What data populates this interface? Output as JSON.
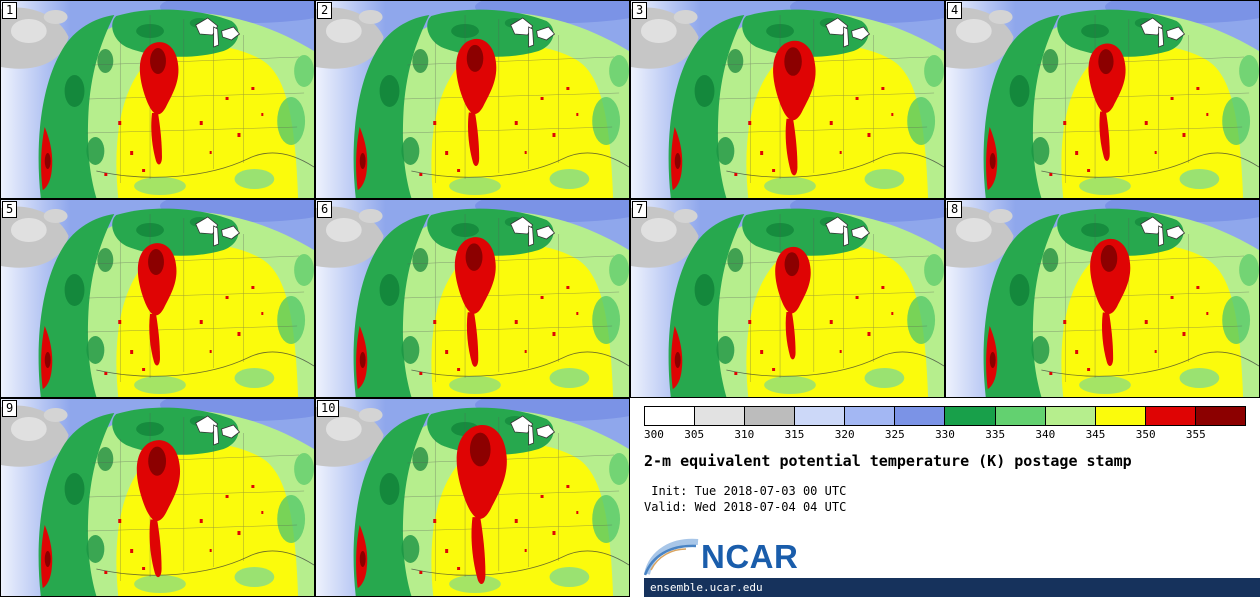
{
  "panels": [
    {
      "label": "1"
    },
    {
      "label": "2"
    },
    {
      "label": "3"
    },
    {
      "label": "4"
    },
    {
      "label": "5"
    },
    {
      "label": "6"
    },
    {
      "label": "7"
    },
    {
      "label": "8"
    },
    {
      "label": "9"
    },
    {
      "label": "10"
    }
  ],
  "colorbar": {
    "units": "K",
    "ticks": [
      "300",
      "305",
      "310",
      "315",
      "320",
      "325",
      "330",
      "335",
      "340",
      "345",
      "350",
      "355"
    ],
    "segment_colors": [
      "#ffffff",
      "#e2e2e2",
      "#bcbcbc",
      "#ccd8f8",
      "#a3b7f3",
      "#7b93e6",
      "#18a04a",
      "#63d170",
      "#b6ee8d",
      "#fbfb0c",
      "#df0404",
      "#8c0000"
    ]
  },
  "product": {
    "title": "2-m equivalent potential temperature (K) postage stamp",
    "init_line": " Init: Tue 2018-07-03 00 UTC",
    "valid_line": "Valid: Wed 2018-07-04 04 UTC"
  },
  "branding": {
    "logo_text": "NCAR",
    "site_url": "ensemble.ucar.edu",
    "logo_color": "#1a5dab",
    "url_bar_color": "#16325c"
  },
  "map_palette": {
    "ocean_blue": "#8fa7ec",
    "cloud_gray": "#c6c6c6",
    "dark_green": "#108038",
    "green": "#27a84e",
    "light_green": "#b6ee8d",
    "yellow": "#fbfb0c",
    "red": "#df0404",
    "dark_red": "#8c0000"
  }
}
